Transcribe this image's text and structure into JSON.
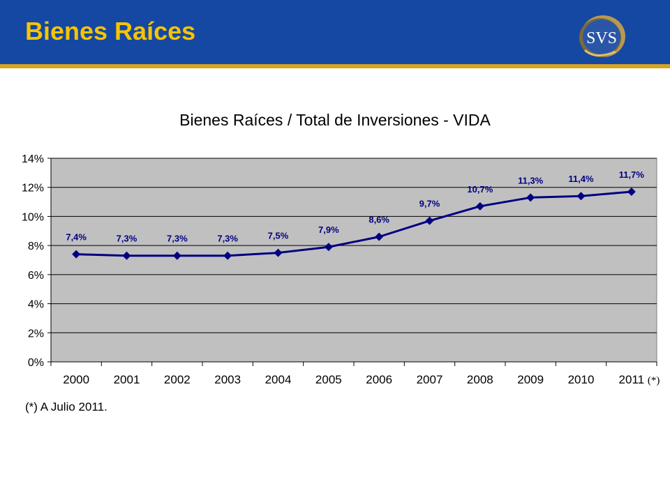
{
  "header": {
    "title": "Bienes Raíces",
    "logo_text": "SVS",
    "bg_color": "#1548a3",
    "accent_color": "#d6a41e",
    "title_color": "#f6c400"
  },
  "footnote": "(*) A Julio 2011.",
  "chart_data": {
    "type": "line",
    "title": "Bienes Raíces / Total de Inversiones - VIDA",
    "xlabel": "",
    "ylabel": "",
    "categories": [
      "2000",
      "2001",
      "2002",
      "2003",
      "2004",
      "2005",
      "2006",
      "2007",
      "2008",
      "2009",
      "2010",
      "2011"
    ],
    "category_suffix_last": "(*)",
    "series": [
      {
        "values": [
          7.4,
          7.3,
          7.3,
          7.3,
          7.5,
          7.9,
          8.6,
          9.7,
          10.7,
          11.3,
          11.4,
          11.7
        ],
        "data_labels": [
          "7,4%",
          "7,3%",
          "7,3%",
          "7,3%",
          "7,5%",
          "7,9%",
          "8,6%",
          "9,7%",
          "10,7%",
          "11,3%",
          "11,4%",
          "11,7%"
        ],
        "color": "#000080"
      }
    ],
    "ylim": [
      0,
      14
    ],
    "yticks": [
      0,
      2,
      4,
      6,
      8,
      10,
      12,
      14
    ],
    "ytick_labels": [
      "0%",
      "2%",
      "4%",
      "6%",
      "8%",
      "10%",
      "12%",
      "14%"
    ],
    "grid": true,
    "legend": "none",
    "plot_bg_color": "#c0c0c0",
    "label_color": "#000080"
  }
}
